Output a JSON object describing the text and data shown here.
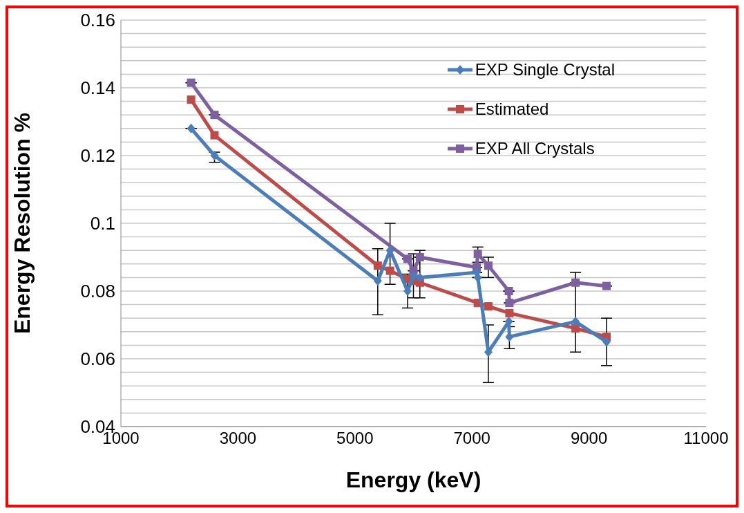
{
  "chart_data": {
    "type": "line",
    "xlabel": "Energy (keV)",
    "ylabel": "Energy Resolution %",
    "xlim": [
      1000,
      11000
    ],
    "xticks": [
      1000,
      3000,
      5000,
      7000,
      9000,
      11000
    ],
    "ylim": [
      0.04,
      0.16
    ],
    "yticks": [
      0.04,
      {
        "value": 0.044,
        "label": null
      },
      {
        "value": 0.048,
        "label": null
      },
      {
        "value": 0.052,
        "label": null
      },
      {
        "value": 0.056,
        "label": null
      },
      0.06,
      {
        "value": 0.064,
        "label": null
      },
      {
        "value": 0.068,
        "label": null
      },
      {
        "value": 0.072,
        "label": null
      },
      {
        "value": 0.076,
        "label": null
      },
      0.08,
      {
        "value": 0.084,
        "label": null
      },
      {
        "value": 0.088,
        "label": null
      },
      {
        "value": 0.092,
        "label": null
      },
      {
        "value": 0.096,
        "label": null
      },
      0.1,
      {
        "value": 0.104,
        "label": null
      },
      {
        "value": 0.108,
        "label": null
      },
      {
        "value": 0.112,
        "label": null
      },
      {
        "value": 0.116,
        "label": null
      },
      0.12,
      {
        "value": 0.124,
        "label": null
      },
      {
        "value": 0.128,
        "label": null
      },
      {
        "value": 0.132,
        "label": null
      },
      {
        "value": 0.136,
        "label": null
      },
      0.14,
      {
        "value": 0.144,
        "label": null
      },
      {
        "value": 0.148,
        "label": null
      },
      {
        "value": 0.152,
        "label": null
      },
      {
        "value": 0.156,
        "label": null
      },
      0.16
    ],
    "grid": "y",
    "legend": "top right",
    "line_style": "solid",
    "series": [
      {
        "name": "EXP Single Crystal",
        "color": "#4a7ebb",
        "marker": "diamond",
        "x": [
          2200,
          2600,
          5390,
          5600,
          5900,
          6000,
          6110,
          7080,
          7100,
          7280,
          7630,
          7640,
          8770,
          9300
        ],
        "values": [
          0.128,
          0.12,
          0.083,
          0.092,
          0.08,
          0.0845,
          0.084,
          0.0855,
          0.084,
          0.062,
          0.071,
          0.0665,
          0.071,
          0.065
        ],
        "errors": [
          null,
          [
            0.118,
            0.121
          ],
          [
            0.073,
            0.0925
          ],
          [
            0.082,
            0.1
          ],
          [
            0.075,
            0.085
          ],
          [
            0.078,
            0.091
          ],
          [
            0.078,
            0.092
          ],
          null,
          null,
          [
            0.053,
            0.07
          ],
          null,
          [
            0.063,
            0.0695
          ],
          [
            0.062,
            0.0855
          ],
          [
            0.058,
            0.072
          ]
        ]
      },
      {
        "name": "Estimated",
        "color": "#be4b48",
        "marker": "square",
        "x": [
          2200,
          2600,
          5390,
          5600,
          5900,
          6000,
          6110,
          7100,
          7280,
          7640,
          8770,
          9300
        ],
        "values": [
          0.1365,
          0.126,
          0.0875,
          0.086,
          0.0835,
          0.083,
          0.0825,
          0.0765,
          0.0755,
          0.0735,
          0.069,
          0.0665
        ]
      },
      {
        "name": "EXP All Crystals",
        "color": "#7d60a0",
        "marker": "square",
        "x": [
          2200,
          2600,
          5900,
          6000,
          6110,
          7080,
          7100,
          7280,
          7630,
          7640,
          8770,
          9300
        ],
        "values": [
          0.1415,
          0.132,
          0.0895,
          0.086,
          0.09,
          0.087,
          0.091,
          0.0875,
          0.08,
          0.0765,
          0.0825,
          0.0815
        ],
        "errors": [
          null,
          null,
          null,
          null,
          null,
          null,
          [
            0.0885,
            0.093
          ],
          [
            0.084,
            0.09
          ],
          null,
          null,
          null,
          null
        ]
      }
    ]
  }
}
